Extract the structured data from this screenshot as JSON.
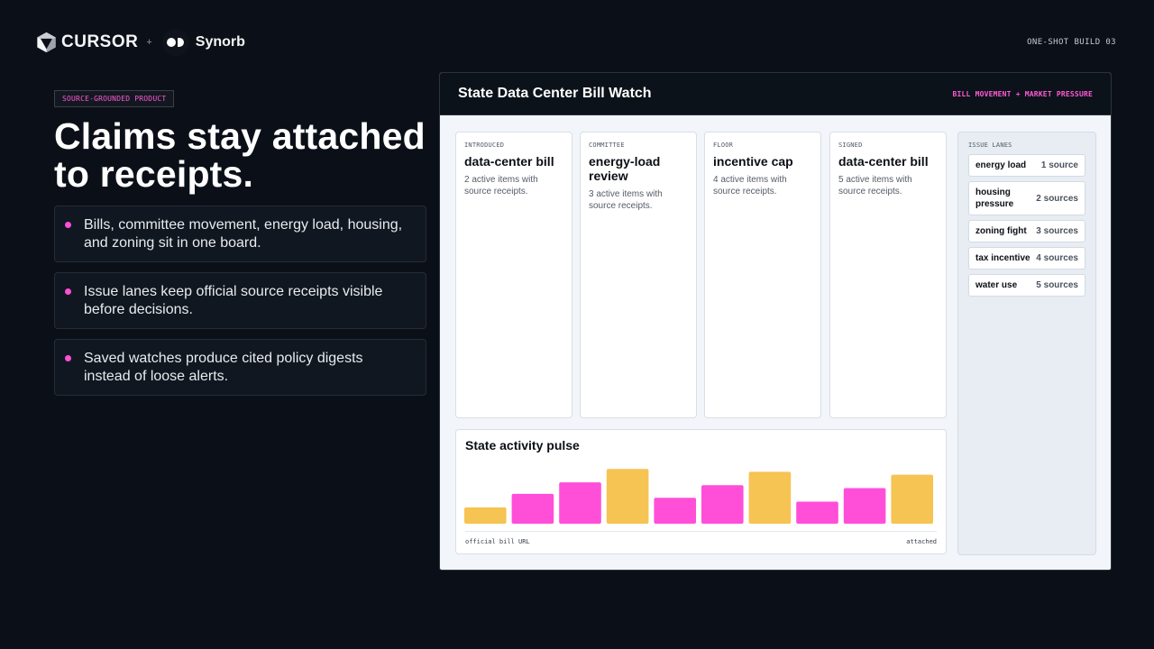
{
  "brand": {
    "cursor_label": "CURSOR",
    "plus": "+",
    "synorb_label": "Synorb",
    "build_tag": "ONE-SHOT BUILD 03"
  },
  "hero": {
    "kicker": "SOURCE-GROUNDED PRODUCT",
    "headline": "Claims stay attached to receipts.",
    "bullets": [
      "Bills, committee movement, energy load, housing, and zoning sit in one board.",
      "Issue lanes keep official source receipts visible before decisions.",
      "Saved watches produce cited policy digests instead of loose alerts."
    ]
  },
  "app": {
    "title": "State Data Center Bill Watch",
    "subtitle": "BILL MOVEMENT + MARKET PRESSURE",
    "stages": [
      {
        "label": "INTRODUCED",
        "name": "data-center bill",
        "desc": "2 active items with source receipts."
      },
      {
        "label": "COMMITTEE",
        "name": "energy-load review",
        "desc": "3 active items with source receipts."
      },
      {
        "label": "FLOOR",
        "name": "incentive cap",
        "desc": "4 active items with source receipts."
      },
      {
        "label": "SIGNED",
        "name": "data-center bill",
        "desc": "5 active items with source receipts."
      }
    ],
    "pulse": {
      "title": "State activity pulse",
      "foot_left": "official bill URL",
      "foot_right": "attached"
    },
    "lanes": {
      "label": "ISSUE LANES",
      "items": [
        {
          "name": "energy load",
          "count": "1 source"
        },
        {
          "name": "housing pressure",
          "count": "2 sources"
        },
        {
          "name": "zoning fight",
          "count": "3 sources"
        },
        {
          "name": "tax incentive",
          "count": "4 sources"
        },
        {
          "name": "water use",
          "count": "5 sources"
        }
      ]
    }
  },
  "colors": {
    "accent_pink": "#ff4fd8",
    "accent_yellow": "#f6c453",
    "background": "#0b1018"
  },
  "chart_data": {
    "type": "bar",
    "title": "State activity pulse",
    "xlabel": "",
    "ylabel": "",
    "ylim": [
      0,
      60
    ],
    "grid": false,
    "series": [
      {
        "values": [
          17,
          31,
          43,
          57,
          27,
          40,
          54,
          23,
          37,
          51
        ]
      }
    ],
    "bar_colors": [
      "#f6c453",
      "#ff4fd8",
      "#ff4fd8",
      "#f6c453",
      "#ff4fd8",
      "#ff4fd8",
      "#f6c453",
      "#ff4fd8",
      "#ff4fd8",
      "#f6c453"
    ]
  }
}
